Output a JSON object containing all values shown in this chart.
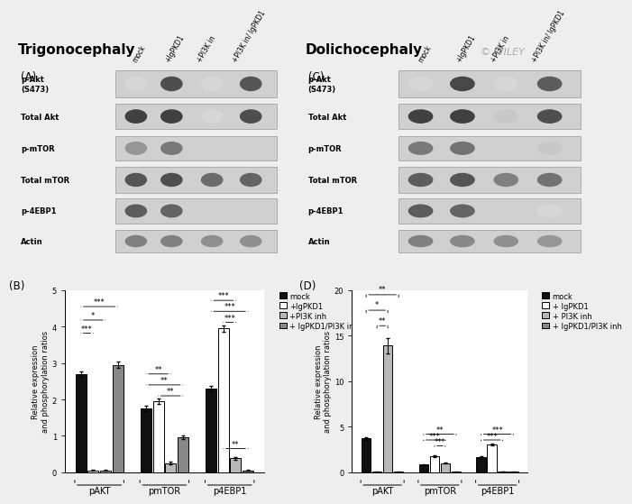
{
  "title_left": "Trigonocephaly",
  "title_right": "Dolichocephaly",
  "panel_A_label": "(A)",
  "panel_B_label": "(B)",
  "panel_C_label": "(C)",
  "panel_D_label": "(D)",
  "col_labels_top": [
    "mock",
    "+IgPKD1",
    "+PI3K in",
    "+PI3K in/ IgPKD1"
  ],
  "row_labels_left": [
    "p-Akt\n(S473)",
    "Total Akt",
    "p-mTOR",
    "Total mTOR",
    "p-4EBP1",
    "Actin"
  ],
  "bar_colors": [
    "#111111",
    "#ffffff",
    "#b8b8b8",
    "#888888"
  ],
  "bar_edgecolors": [
    "#000000",
    "#000000",
    "#000000",
    "#000000"
  ],
  "legend_labels_B": [
    "mock",
    "+IgPKD1",
    "+PI3K inh",
    "+ IgPKD1/PI3K inh"
  ],
  "legend_labels_D": [
    "mock",
    "+ IgPKD1",
    "+ PI3K inh",
    "+ IgPKD1/PI3K inh"
  ],
  "B_data": {
    "pAKT": [
      2.7,
      0.05,
      0.05,
      2.95
    ],
    "pmTOR": [
      1.75,
      1.95,
      0.25,
      0.97
    ],
    "p4EBP1": [
      2.3,
      3.95,
      0.38,
      0.05
    ]
  },
  "B_errors": {
    "pAKT": [
      0.08,
      0.01,
      0.01,
      0.08
    ],
    "pmTOR": [
      0.08,
      0.08,
      0.04,
      0.05
    ],
    "p4EBP1": [
      0.08,
      0.08,
      0.04,
      0.01
    ]
  },
  "B_ylim": [
    0,
    5
  ],
  "B_yticks": [
    0,
    1,
    2,
    3,
    4,
    5
  ],
  "B_ylabel": "Relative expression\nand phosphorylation ratios",
  "D_data": {
    "pAKT": [
      3.7,
      0.05,
      13.9,
      0.05
    ],
    "pmTOR": [
      0.85,
      1.75,
      1.0,
      0.05
    ],
    "p4EBP1": [
      1.7,
      3.1,
      0.1,
      0.05
    ]
  },
  "D_errors": {
    "pAKT": [
      0.15,
      0.02,
      0.8,
      0.02
    ],
    "pmTOR": [
      0.05,
      0.1,
      0.05,
      0.02
    ],
    "p4EBP1": [
      0.1,
      0.1,
      0.02,
      0.02
    ]
  },
  "D_ylim": [
    0,
    20
  ],
  "D_yticks": [
    0,
    5,
    10,
    15,
    20
  ],
  "D_ylabel": "Relative expression\nand phosphorylation ratios",
  "background_color": "#eeeeee",
  "wiley_text": "© WILEY",
  "wb_bg": "#d0d0d0",
  "wb_border": "#999999"
}
